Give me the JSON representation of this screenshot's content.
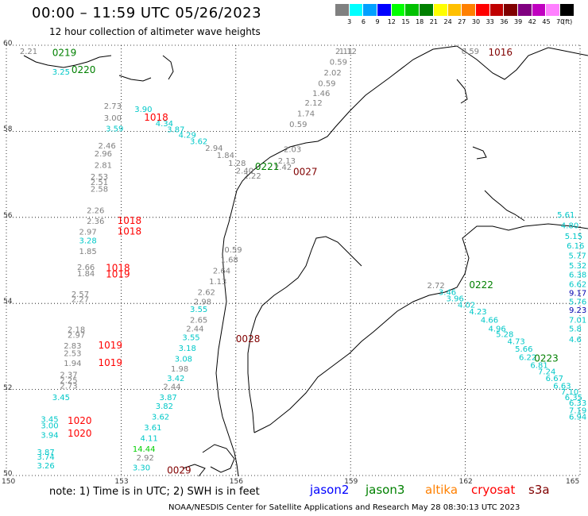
{
  "title": "00:00 – 11:59 UTC 05/26/2023",
  "subtitle": "12 hour collection of altimeter wave heights",
  "legend": {
    "colors": [
      "#808080",
      "#00ffff",
      "#00a0ff",
      "#0000ff",
      "#00ff00",
      "#00c000",
      "#008000",
      "#ffff00",
      "#ffc000",
      "#ff8000",
      "#ff0000",
      "#c00000",
      "#800000",
      "#800080",
      "#c000c0",
      "#ff80ff",
      "#000000"
    ],
    "ticks": [
      "3",
      "6",
      "9",
      "12",
      "15",
      "18",
      "21",
      "24",
      "27",
      "30",
      "33",
      "36",
      "39",
      "42",
      "45",
      "70",
      "(ft)"
    ]
  },
  "axes": {
    "lat_labels": [
      "60",
      "58",
      "56",
      "54",
      "52",
      "50"
    ],
    "lon_labels": [
      "150",
      "153",
      "156",
      "159",
      "162",
      "165"
    ]
  },
  "note": "note: 1) Time is in UTC; 2) SWH is in feet",
  "satellites": [
    {
      "name": "jason2",
      "color": "#0000ff"
    },
    {
      "name": "jason3",
      "color": "#008000"
    },
    {
      "name": "altika",
      "color": "#ff8000"
    },
    {
      "name": "cryosat",
      "color": "#ff0000"
    },
    {
      "name": "s3a",
      "color": "#800000"
    }
  ],
  "credit": "NOAA/NESDIS Center for Satellite Applications and Research   May 28 08:30:13 UTC 2023",
  "time_labels": [
    {
      "text": "0219",
      "color": "#008000",
      "lon": 151.2,
      "lat": 59.75
    },
    {
      "text": "0220",
      "color": "#008000",
      "lon": 151.7,
      "lat": 59.35
    },
    {
      "text": "1018",
      "color": "#ff0000",
      "lon": 153.6,
      "lat": 58.25
    },
    {
      "text": "0221",
      "color": "#008000",
      "lon": 156.5,
      "lat": 57.1
    },
    {
      "text": "0027",
      "color": "#800000",
      "lon": 157.5,
      "lat": 56.98
    },
    {
      "text": "1016",
      "color": "#800000",
      "lon": 162.6,
      "lat": 59.8
    },
    {
      "text": "1018",
      "color": "#ff0000",
      "lon": 152.9,
      "lat": 55.85
    },
    {
      "text": "1018",
      "color": "#ff0000",
      "lon": 152.9,
      "lat": 55.6
    },
    {
      "text": "1018",
      "color": "#ff0000",
      "lon": 152.6,
      "lat": 54.75
    },
    {
      "text": "1019",
      "color": "#ff0000",
      "lon": 152.6,
      "lat": 54.6
    },
    {
      "text": "0028",
      "color": "#800000",
      "lon": 156.0,
      "lat": 53.1
    },
    {
      "text": "1019",
      "color": "#ff0000",
      "lon": 152.4,
      "lat": 52.95
    },
    {
      "text": "1019",
      "color": "#ff0000",
      "lon": 152.4,
      "lat": 52.55
    },
    {
      "text": "1020",
      "color": "#ff0000",
      "lon": 151.6,
      "lat": 51.2
    },
    {
      "text": "1020",
      "color": "#ff0000",
      "lon": 151.6,
      "lat": 50.9
    },
    {
      "text": "0029",
      "color": "#800000",
      "lon": 154.2,
      "lat": 50.05
    },
    {
      "text": "0222",
      "color": "#008000",
      "lon": 162.1,
      "lat": 54.35
    },
    {
      "text": "0223",
      "color": "#008000",
      "lon": 163.8,
      "lat": 52.65
    }
  ],
  "measurements": [
    {
      "v": "2.21",
      "c": "#808080",
      "lon": 150.35,
      "lat": 59.8
    },
    {
      "v": "3.25",
      "c": "#00c8c8",
      "lon": 151.2,
      "lat": 59.32
    },
    {
      "v": "2.73",
      "c": "#808080",
      "lon": 152.55,
      "lat": 58.52
    },
    {
      "v": "3.00",
      "c": "#808080",
      "lon": 152.55,
      "lat": 58.25
    },
    {
      "v": "3.59",
      "c": "#00c8c8",
      "lon": 152.6,
      "lat": 58.0
    },
    {
      "v": "3.90",
      "c": "#00c8c8",
      "lon": 153.35,
      "lat": 58.45
    },
    {
      "v": "4.34",
      "c": "#00c8c8",
      "lon": 153.9,
      "lat": 58.12
    },
    {
      "v": "3.87",
      "c": "#00c8c8",
      "lon": 154.2,
      "lat": 57.98
    },
    {
      "v": "4.29",
      "c": "#00c8c8",
      "lon": 154.5,
      "lat": 57.85
    },
    {
      "v": "3.62",
      "c": "#00c8c8",
      "lon": 154.8,
      "lat": 57.7
    },
    {
      "v": "2.94",
      "c": "#808080",
      "lon": 155.2,
      "lat": 57.55
    },
    {
      "v": "1.84",
      "c": "#808080",
      "lon": 155.5,
      "lat": 57.38
    },
    {
      "v": "1.28",
      "c": "#808080",
      "lon": 155.8,
      "lat": 57.2
    },
    {
      "v": "2.40",
      "c": "#808080",
      "lon": 156.0,
      "lat": 57.02
    },
    {
      "v": "2.22",
      "c": "#808080",
      "lon": 156.2,
      "lat": 56.9
    },
    {
      "v": "2.42",
      "c": "#808080",
      "lon": 157.0,
      "lat": 57.1
    },
    {
      "v": "2.13",
      "c": "#808080",
      "lon": 157.1,
      "lat": 57.25
    },
    {
      "v": "2.03",
      "c": "#808080",
      "lon": 157.25,
      "lat": 57.52
    },
    {
      "v": "0.59",
      "c": "#808080",
      "lon": 157.4,
      "lat": 58.1
    },
    {
      "v": "1.74",
      "c": "#808080",
      "lon": 157.6,
      "lat": 58.35
    },
    {
      "v": "2.12",
      "c": "#808080",
      "lon": 157.8,
      "lat": 58.6
    },
    {
      "v": "1.46",
      "c": "#808080",
      "lon": 158.0,
      "lat": 58.82
    },
    {
      "v": "0.59",
      "c": "#808080",
      "lon": 158.15,
      "lat": 59.05
    },
    {
      "v": "2.02",
      "c": "#808080",
      "lon": 158.3,
      "lat": 59.3
    },
    {
      "v": "0.59",
      "c": "#808080",
      "lon": 158.45,
      "lat": 59.55
    },
    {
      "v": "2.11",
      "c": "#808080",
      "lon": 158.6,
      "lat": 59.8
    },
    {
      "v": "1.12",
      "c": "#808080",
      "lon": 158.7,
      "lat": 60.0
    },
    {
      "v": "0.59",
      "c": "#808080",
      "lon": 161.9,
      "lat": 59.8
    },
    {
      "v": "2.46",
      "c": "#808080",
      "lon": 152.4,
      "lat": 57.6
    },
    {
      "v": "2.96",
      "c": "#808080",
      "lon": 152.3,
      "lat": 57.42
    },
    {
      "v": "2.81",
      "c": "#808080",
      "lon": 152.3,
      "lat": 57.15
    },
    {
      "v": "2.53",
      "c": "#808080",
      "lon": 152.2,
      "lat": 56.88
    },
    {
      "v": "2.51",
      "c": "#808080",
      "lon": 152.2,
      "lat": 56.75
    },
    {
      "v": "2.58",
      "c": "#808080",
      "lon": 152.2,
      "lat": 56.6
    },
    {
      "v": "2.26",
      "c": "#808080",
      "lon": 152.1,
      "lat": 56.1
    },
    {
      "v": "2.36",
      "c": "#808080",
      "lon": 152.1,
      "lat": 55.85
    },
    {
      "v": "2.97",
      "c": "#808080",
      "lon": 151.9,
      "lat": 55.6
    },
    {
      "v": "3.28",
      "c": "#00c8c8",
      "lon": 151.9,
      "lat": 55.4
    },
    {
      "v": "1.85",
      "c": "#808080",
      "lon": 151.9,
      "lat": 55.15
    },
    {
      "v": "2.66",
      "c": "#808080",
      "lon": 151.85,
      "lat": 54.78
    },
    {
      "v": "1.84",
      "c": "#808080",
      "lon": 151.85,
      "lat": 54.63
    },
    {
      "v": "2.57",
      "c": "#808080",
      "lon": 151.7,
      "lat": 54.15
    },
    {
      "v": "2.27",
      "c": "#808080",
      "lon": 151.7,
      "lat": 54.03
    },
    {
      "v": "2.18",
      "c": "#808080",
      "lon": 151.6,
      "lat": 53.33
    },
    {
      "v": "2.97",
      "c": "#808080",
      "lon": 151.6,
      "lat": 53.2
    },
    {
      "v": "2.83",
      "c": "#808080",
      "lon": 151.5,
      "lat": 52.95
    },
    {
      "v": "2.53",
      "c": "#808080",
      "lon": 151.5,
      "lat": 52.78
    },
    {
      "v": "1.94",
      "c": "#808080",
      "lon": 151.5,
      "lat": 52.55
    },
    {
      "v": "2.37",
      "c": "#808080",
      "lon": 151.4,
      "lat": 52.28
    },
    {
      "v": "2.25",
      "c": "#808080",
      "lon": 151.4,
      "lat": 52.15
    },
    {
      "v": "2.73",
      "c": "#808080",
      "lon": 151.4,
      "lat": 52.02
    },
    {
      "v": "3.45",
      "c": "#00c8c8",
      "lon": 151.2,
      "lat": 51.75
    },
    {
      "v": "3.45",
      "c": "#00c8c8",
      "lon": 150.9,
      "lat": 51.25
    },
    {
      "v": "3.00",
      "c": "#00c8c8",
      "lon": 150.9,
      "lat": 51.1
    },
    {
      "v": "3.94",
      "c": "#00c8c8",
      "lon": 150.9,
      "lat": 50.88
    },
    {
      "v": "3.87",
      "c": "#00c8c8",
      "lon": 150.8,
      "lat": 50.48
    },
    {
      "v": "3.74",
      "c": "#00c8c8",
      "lon": 150.8,
      "lat": 50.37
    },
    {
      "v": "3.26",
      "c": "#00c8c8",
      "lon": 150.8,
      "lat": 50.17
    },
    {
      "v": "0.59",
      "c": "#808080",
      "lon": 155.7,
      "lat": 55.18
    },
    {
      "v": "1.68",
      "c": "#808080",
      "lon": 155.6,
      "lat": 54.95
    },
    {
      "v": "2.64",
      "c": "#808080",
      "lon": 155.4,
      "lat": 54.7
    },
    {
      "v": "1.13",
      "c": "#808080",
      "lon": 155.3,
      "lat": 54.45
    },
    {
      "v": "2.62",
      "c": "#808080",
      "lon": 155.0,
      "lat": 54.2
    },
    {
      "v": "2.98",
      "c": "#808080",
      "lon": 154.9,
      "lat": 53.98
    },
    {
      "v": "3.55",
      "c": "#00c8c8",
      "lon": 154.8,
      "lat": 53.8
    },
    {
      "v": "2.65",
      "c": "#808080",
      "lon": 154.8,
      "lat": 53.55
    },
    {
      "v": "2.44",
      "c": "#808080",
      "lon": 154.7,
      "lat": 53.35
    },
    {
      "v": "3.55",
      "c": "#00c8c8",
      "lon": 154.6,
      "lat": 53.15
    },
    {
      "v": "3.18",
      "c": "#00c8c8",
      "lon": 154.5,
      "lat": 52.9
    },
    {
      "v": "3.08",
      "c": "#00c8c8",
      "lon": 154.4,
      "lat": 52.65
    },
    {
      "v": "1.98",
      "c": "#808080",
      "lon": 154.3,
      "lat": 52.42
    },
    {
      "v": "3.42",
      "c": "#00c8c8",
      "lon": 154.2,
      "lat": 52.2
    },
    {
      "v": "2.44",
      "c": "#808080",
      "lon": 154.1,
      "lat": 52.0
    },
    {
      "v": "3.87",
      "c": "#00c8c8",
      "lon": 154.0,
      "lat": 51.75
    },
    {
      "v": "3.82",
      "c": "#00c8c8",
      "lon": 153.9,
      "lat": 51.55
    },
    {
      "v": "3.62",
      "c": "#00c8c8",
      "lon": 153.8,
      "lat": 51.3
    },
    {
      "v": "3.61",
      "c": "#00c8c8",
      "lon": 153.6,
      "lat": 51.05
    },
    {
      "v": "4.11",
      "c": "#00c8c8",
      "lon": 153.5,
      "lat": 50.8
    },
    {
      "v": "14.44",
      "c": "#00d000",
      "lon": 153.3,
      "lat": 50.55
    },
    {
      "v": "2.92",
      "c": "#808080",
      "lon": 153.4,
      "lat": 50.35
    },
    {
      "v": "3.30",
      "c": "#00c8c8",
      "lon": 153.3,
      "lat": 50.12
    },
    {
      "v": "2.72",
      "c": "#808080",
      "lon": 161.0,
      "lat": 54.35
    },
    {
      "v": "3.46",
      "c": "#00c8c8",
      "lon": 161.3,
      "lat": 54.2
    },
    {
      "v": "3.96",
      "c": "#00c8c8",
      "lon": 161.5,
      "lat": 54.05
    },
    {
      "v": "4.02",
      "c": "#00c8c8",
      "lon": 161.8,
      "lat": 53.9
    },
    {
      "v": "4.23",
      "c": "#00c8c8",
      "lon": 162.1,
      "lat": 53.75
    },
    {
      "v": "4.66",
      "c": "#00c8c8",
      "lon": 162.4,
      "lat": 53.55
    },
    {
      "v": "4.96",
      "c": "#00c8c8",
      "lon": 162.6,
      "lat": 53.35
    },
    {
      "v": "5.28",
      "c": "#00c8c8",
      "lon": 162.8,
      "lat": 53.22
    },
    {
      "v": "4.73",
      "c": "#00c8c8",
      "lon": 163.1,
      "lat": 53.05
    },
    {
      "v": "5.66",
      "c": "#00c8c8",
      "lon": 163.3,
      "lat": 52.88
    },
    {
      "v": "6.22",
      "c": "#00c8c8",
      "lon": 163.4,
      "lat": 52.68
    },
    {
      "v": "6.81",
      "c": "#00c8c8",
      "lon": 163.7,
      "lat": 52.5
    },
    {
      "v": "7.24",
      "c": "#00c8c8",
      "lon": 163.9,
      "lat": 52.35
    },
    {
      "v": "6.67",
      "c": "#00c8c8",
      "lon": 164.1,
      "lat": 52.2
    },
    {
      "v": "6.63",
      "c": "#00c8c8",
      "lon": 164.3,
      "lat": 52.02
    },
    {
      "v": "7.10",
      "c": "#00c8c8",
      "lon": 164.5,
      "lat": 51.88
    },
    {
      "v": "6.35",
      "c": "#00c8c8",
      "lon": 164.6,
      "lat": 51.75
    },
    {
      "v": "6.33",
      "c": "#00c8c8",
      "lon": 164.8,
      "lat": 51.62
    },
    {
      "v": "7.19",
      "c": "#00c8c8",
      "lon": 164.9,
      "lat": 51.45
    },
    {
      "v": "6.94",
      "c": "#00c8c8",
      "lon": 165.0,
      "lat": 51.3
    },
    {
      "v": "5.61",
      "c": "#00c8c8",
      "lon": 164.4,
      "lat": 56.0
    },
    {
      "v": "4.80",
      "c": "#00c8c8",
      "lon": 164.5,
      "lat": 55.75
    },
    {
      "v": "5.15",
      "c": "#00c8c8",
      "lon": 164.6,
      "lat": 55.5
    },
    {
      "v": "6.16",
      "c": "#00c8c8",
      "lon": 164.65,
      "lat": 55.28
    },
    {
      "v": "5.77",
      "c": "#00c8c8",
      "lon": 164.7,
      "lat": 55.05
    },
    {
      "v": "5.32",
      "c": "#00c8c8",
      "lon": 164.8,
      "lat": 54.82
    },
    {
      "v": "6.38",
      "c": "#00c8c8",
      "lon": 164.85,
      "lat": 54.6
    },
    {
      "v": "6.62",
      "c": "#00c8c8",
      "lon": 164.9,
      "lat": 54.38
    },
    {
      "v": "9.17",
      "c": "#0000b0",
      "lon": 165.0,
      "lat": 54.18
    },
    {
      "v": "5.76",
      "c": "#00c8c8",
      "lon": 165.0,
      "lat": 53.98
    },
    {
      "v": "9.23",
      "c": "#0000b0",
      "lon": 165.05,
      "lat": 53.78
    },
    {
      "v": "7.01",
      "c": "#00c8c8",
      "lon": 165.1,
      "lat": 53.55
    },
    {
      "v": "5.8",
      "c": "#00c8c8",
      "lon": 165.15,
      "lat": 53.35
    },
    {
      "v": "4.6",
      "c": "#00c8c8",
      "lon": 165.15,
      "lat": 53.1
    }
  ]
}
